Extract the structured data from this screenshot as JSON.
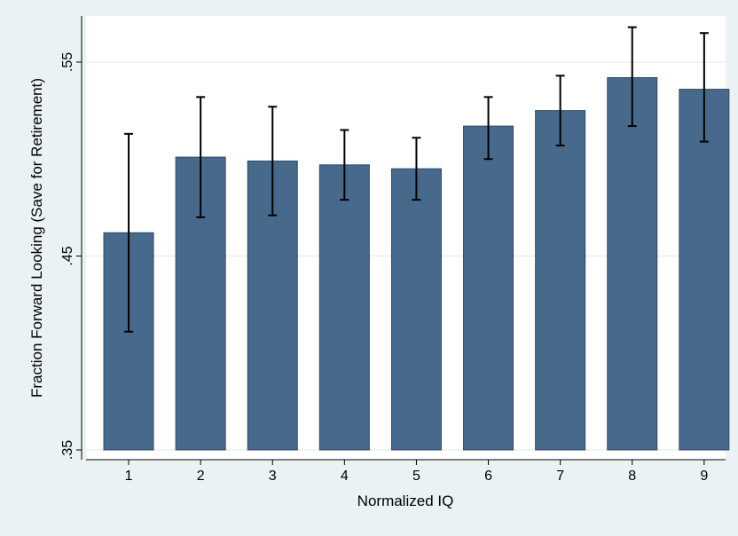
{
  "chart_data": {
    "type": "bar",
    "title": "",
    "xlabel": "Normalized IQ",
    "ylabel": "Fraction Forward Looking (Save for Retirement)",
    "categories": [
      "1",
      "2",
      "3",
      "4",
      "5",
      "6",
      "7",
      "8",
      "9"
    ],
    "values": [
      0.462,
      0.501,
      0.499,
      0.497,
      0.495,
      0.517,
      0.525,
      0.542,
      0.536
    ],
    "error_low": [
      0.411,
      0.47,
      0.471,
      0.479,
      0.479,
      0.5,
      0.507,
      0.517,
      0.509
    ],
    "error_high": [
      0.513,
      0.532,
      0.527,
      0.515,
      0.511,
      0.532,
      0.543,
      0.568,
      0.565
    ],
    "ylim": [
      0.35,
      0.575
    ],
    "yticks": [
      0.35,
      0.45,
      0.55
    ],
    "ytick_labels": [
      ".35",
      ".45",
      ".55"
    ],
    "grid": true,
    "bar_color": "#476a8c",
    "errorbar_color": "#000000",
    "plot_background": "#ffffff",
    "outer_background": "#eaf2f3"
  }
}
